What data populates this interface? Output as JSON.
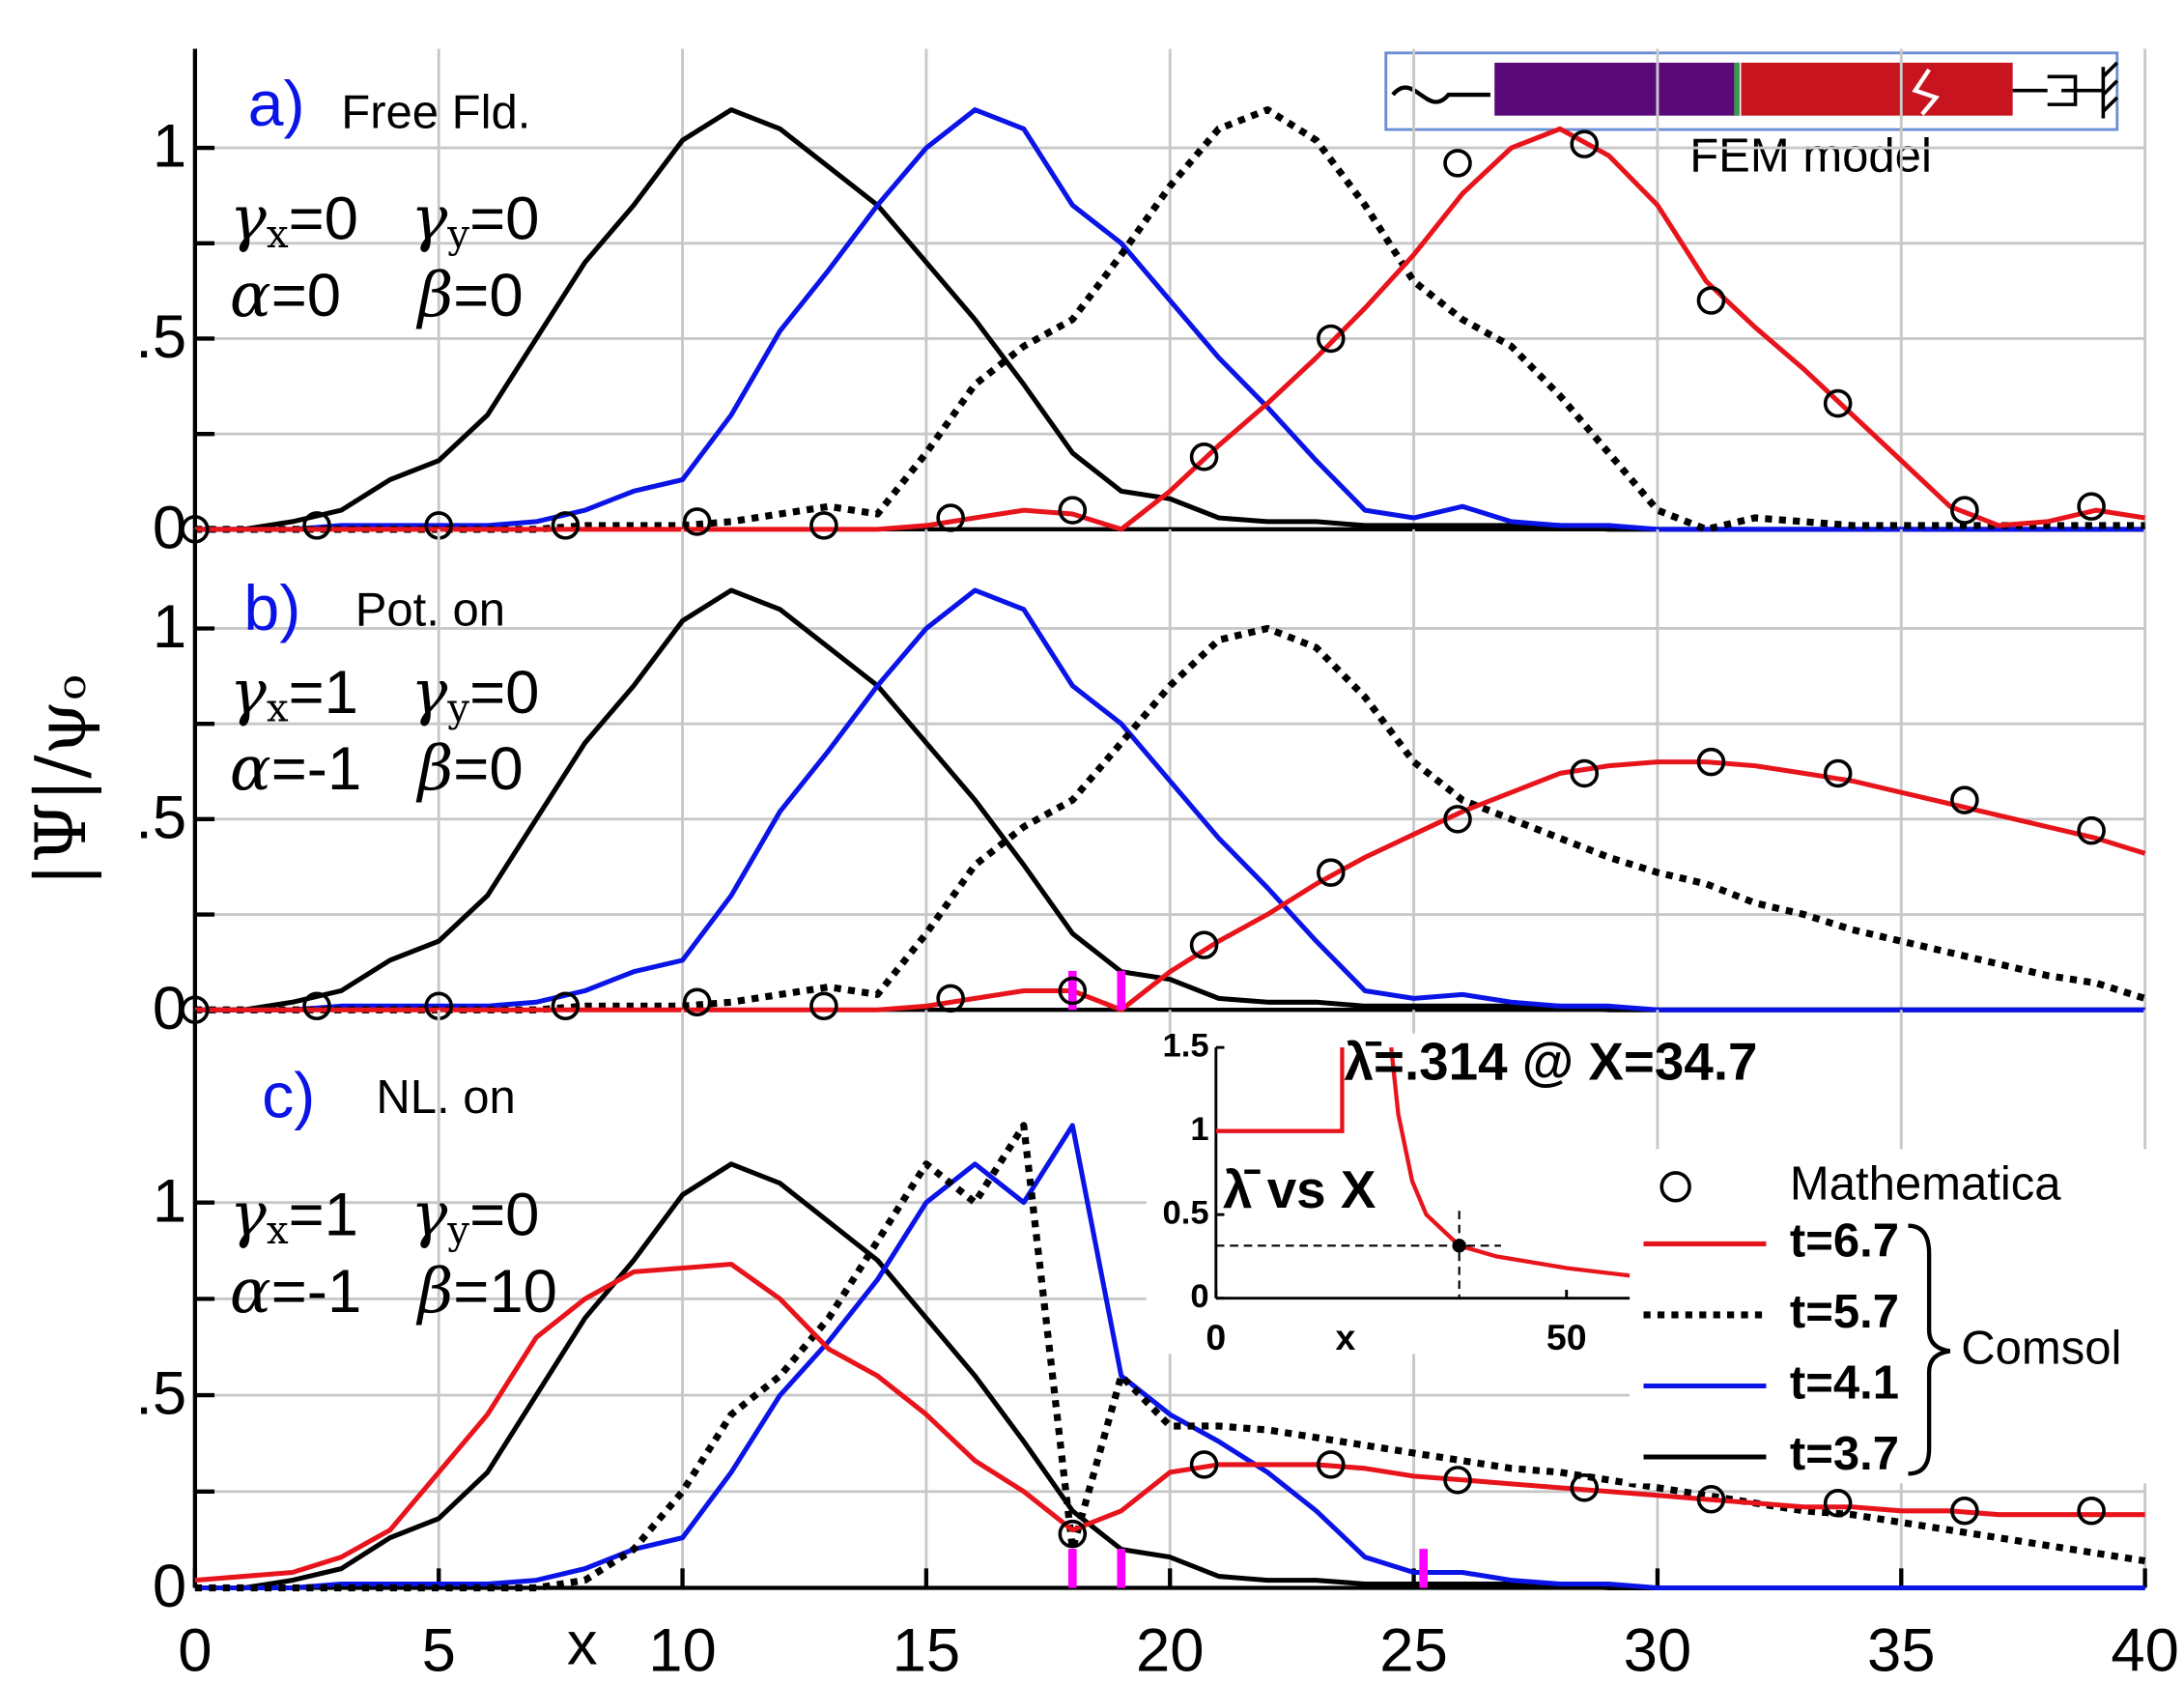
{
  "ylabel": "|Ψ|/ψₒ",
  "fem_label": "FEM model",
  "legend": {
    "entries": [
      "Mathematica",
      "t=6.7",
      "t=5.7",
      "t=4.1",
      "t=3.7"
    ],
    "group_label": "Comsol"
  },
  "chart_data": [
    {
      "type": "line",
      "label": "a)",
      "caption": "Free Fld.",
      "params": [
        {
          "symbol": "γ",
          "sub": "x",
          "text": "=0"
        },
        {
          "symbol": "γ",
          "sub": "y",
          "text": "=0"
        },
        {
          "symbol": "α",
          "sub": "",
          "text": "=0"
        },
        {
          "symbol": "β",
          "sub": "",
          "text": "=0"
        }
      ],
      "x": [
        0,
        1,
        2,
        3,
        4,
        5,
        6,
        7,
        8,
        9,
        10,
        11,
        12,
        13,
        14,
        15,
        16,
        17,
        18,
        19,
        20,
        21,
        22,
        23,
        24,
        25,
        26,
        27,
        28,
        29,
        30,
        31,
        32,
        33,
        34,
        35,
        36,
        37,
        38,
        39,
        40
      ],
      "series": [
        {
          "color": "#e8141c",
          "style": "solid",
          "values": [
            0,
            0,
            0,
            0,
            0,
            0,
            0,
            0,
            0,
            0,
            0,
            0,
            0,
            0,
            0,
            0.01,
            0.03,
            0.05,
            0.04,
            0,
            0.1,
            0.22,
            0.33,
            0.45,
            0.58,
            0.72,
            0.88,
            1.0,
            1.05,
            0.98,
            0.85,
            0.65,
            0.53,
            0.42,
            0.3,
            0.18,
            0.06,
            0.01,
            0.02,
            0.05,
            0.03
          ]
        },
        {
          "color": "#000000",
          "style": "dotted",
          "values": [
            0,
            0,
            0,
            0,
            0,
            0,
            0,
            0,
            0.01,
            0.01,
            0.01,
            0.02,
            0.04,
            0.06,
            0.04,
            0.2,
            0.38,
            0.48,
            0.55,
            0.72,
            0.9,
            1.05,
            1.1,
            1.02,
            0.85,
            0.65,
            0.55,
            0.48,
            0.35,
            0.2,
            0.05,
            0,
            0.03,
            0.02,
            0.01,
            0.01,
            0.01,
            0.01,
            0.01,
            0.01,
            0.01
          ]
        },
        {
          "color": "#0a14e6",
          "style": "solid",
          "values": [
            0,
            0,
            0,
            0.01,
            0.01,
            0.01,
            0.01,
            0.02,
            0.05,
            0.1,
            0.13,
            0.3,
            0.52,
            0.68,
            0.85,
            1.0,
            1.1,
            1.05,
            0.85,
            0.75,
            0.6,
            0.45,
            0.32,
            0.18,
            0.05,
            0.03,
            0.06,
            0.02,
            0.01,
            0.01,
            0,
            0,
            0,
            0,
            0,
            0,
            0,
            0,
            0,
            0,
            0
          ]
        },
        {
          "color": "#000000",
          "style": "solid",
          "values": [
            0,
            0,
            0.02,
            0.05,
            0.13,
            0.18,
            0.3,
            0.5,
            0.7,
            0.85,
            1.02,
            1.1,
            1.05,
            0.95,
            0.85,
            0.7,
            0.55,
            0.38,
            0.2,
            0.1,
            0.08,
            0.03,
            0.02,
            0.02,
            0.01,
            0.01,
            0.01,
            0.01,
            0.01,
            0,
            0,
            0,
            0,
            0,
            0,
            0,
            0,
            0,
            0,
            0,
            0
          ]
        }
      ],
      "mathematica": {
        "x": [
          0,
          2.5,
          5,
          7.6,
          10.3,
          12.9,
          15.5,
          18,
          20.7,
          23.3,
          25.9,
          28.5,
          31.1,
          33.7,
          36.3,
          38.9
        ],
        "values": [
          0,
          0.01,
          0.01,
          0.01,
          0.02,
          0.01,
          0.03,
          0.05,
          0.19,
          0.5,
          0.96,
          1.01,
          0.6,
          0.33,
          0.05,
          0.06
        ]
      },
      "markers_x": [],
      "xlim": [
        0,
        40
      ],
      "xticks": [
        0,
        5,
        10,
        15,
        20,
        25,
        30,
        35,
        40
      ],
      "ylim": [
        0,
        1.26
      ],
      "yticks": [
        0,
        {
          "value": 0.5,
          "label": ".5"
        },
        1
      ],
      "yminor": [
        0.25,
        0.75
      ],
      "grid": true
    },
    {
      "type": "line",
      "label": "b)",
      "caption": "Pot. on",
      "params": [
        {
          "symbol": "γ",
          "sub": "x",
          "text": "=1"
        },
        {
          "symbol": "γ",
          "sub": "y",
          "text": "=0"
        },
        {
          "symbol": "α",
          "sub": "",
          "text": "=-1"
        },
        {
          "symbol": "β",
          "sub": "",
          "text": "=0"
        }
      ],
      "x": [
        0,
        1,
        2,
        3,
        4,
        5,
        6,
        7,
        8,
        9,
        10,
        11,
        12,
        13,
        14,
        15,
        16,
        17,
        18,
        19,
        20,
        21,
        22,
        23,
        24,
        25,
        26,
        27,
        28,
        29,
        30,
        31,
        32,
        33,
        34,
        35,
        36,
        37,
        38,
        39,
        40
      ],
      "series": [
        {
          "color": "#e8141c",
          "style": "solid",
          "values": [
            0,
            0,
            0,
            0,
            0,
            0,
            0,
            0,
            0,
            0,
            0,
            0,
            0,
            0,
            0,
            0.01,
            0.03,
            0.05,
            0.05,
            0,
            0.1,
            0.18,
            0.25,
            0.33,
            0.4,
            0.46,
            0.52,
            0.57,
            0.62,
            0.64,
            0.65,
            0.65,
            0.64,
            0.62,
            0.6,
            0.57,
            0.54,
            0.51,
            0.48,
            0.45,
            0.41
          ]
        },
        {
          "color": "#000000",
          "style": "dotted",
          "values": [
            0,
            0,
            0,
            0,
            0,
            0,
            0,
            0,
            0.01,
            0.01,
            0.01,
            0.02,
            0.04,
            0.06,
            0.04,
            0.2,
            0.38,
            0.48,
            0.55,
            0.7,
            0.85,
            0.97,
            1.0,
            0.95,
            0.82,
            0.65,
            0.55,
            0.5,
            0.45,
            0.4,
            0.36,
            0.33,
            0.28,
            0.25,
            0.21,
            0.18,
            0.15,
            0.12,
            0.09,
            0.07,
            0.03
          ]
        },
        {
          "color": "#0a14e6",
          "style": "solid",
          "values": [
            0,
            0,
            0,
            0.01,
            0.01,
            0.01,
            0.01,
            0.02,
            0.05,
            0.1,
            0.13,
            0.3,
            0.52,
            0.68,
            0.85,
            1.0,
            1.1,
            1.05,
            0.85,
            0.75,
            0.6,
            0.45,
            0.32,
            0.18,
            0.05,
            0.03,
            0.04,
            0.02,
            0.01,
            0.01,
            0,
            0,
            0,
            0,
            0,
            0,
            0,
            0,
            0,
            0,
            0
          ]
        },
        {
          "color": "#000000",
          "style": "solid",
          "values": [
            0,
            0,
            0.02,
            0.05,
            0.13,
            0.18,
            0.3,
            0.5,
            0.7,
            0.85,
            1.02,
            1.1,
            1.05,
            0.95,
            0.85,
            0.7,
            0.55,
            0.38,
            0.2,
            0.1,
            0.08,
            0.03,
            0.02,
            0.02,
            0.01,
            0.01,
            0.01,
            0.01,
            0.01,
            0,
            0,
            0,
            0,
            0,
            0,
            0,
            0,
            0,
            0,
            0,
            0
          ]
        }
      ],
      "mathematica": {
        "x": [
          0,
          2.5,
          5,
          7.6,
          10.3,
          12.9,
          15.5,
          18,
          20.7,
          23.3,
          25.9,
          28.5,
          31.1,
          33.7,
          36.3,
          38.9
        ],
        "values": [
          0,
          0.01,
          0.01,
          0.01,
          0.02,
          0.01,
          0.03,
          0.05,
          0.17,
          0.36,
          0.5,
          0.62,
          0.65,
          0.62,
          0.55,
          0.47
        ]
      },
      "markers_x": [
        18,
        19
      ],
      "xlim": [
        0,
        40
      ],
      "xticks": [
        0,
        5,
        10,
        15,
        20,
        25,
        30,
        35,
        40
      ],
      "ylim": [
        0,
        1.26
      ],
      "yticks": [
        0,
        {
          "value": 0.5,
          "label": ".5"
        },
        1
      ],
      "yminor": [
        0.25,
        0.75
      ],
      "grid": true
    },
    {
      "type": "line",
      "label": "c)",
      "caption": "NL. on",
      "xlabel": "x",
      "params": [
        {
          "symbol": "γ",
          "sub": "x",
          "text": "=1"
        },
        {
          "symbol": "γ",
          "sub": "y",
          "text": "=0"
        },
        {
          "symbol": "α",
          "sub": "",
          "text": "=-1"
        },
        {
          "symbol": "β",
          "sub": "",
          "text": "=10"
        }
      ],
      "x": [
        0,
        1,
        2,
        3,
        4,
        5,
        6,
        7,
        8,
        9,
        10,
        11,
        12,
        13,
        14,
        15,
        16,
        17,
        18,
        19,
        20,
        21,
        22,
        23,
        24,
        25,
        26,
        27,
        28,
        29,
        30,
        31,
        32,
        33,
        34,
        35,
        36,
        37,
        38,
        39,
        40
      ],
      "series": [
        {
          "color": "#e8141c",
          "style": "solid",
          "values": [
            0.02,
            0.03,
            0.04,
            0.08,
            0.15,
            0.3,
            0.45,
            0.65,
            0.75,
            0.82,
            0.83,
            0.84,
            0.75,
            0.62,
            0.55,
            0.45,
            0.33,
            0.25,
            0.15,
            0.2,
            0.3,
            0.32,
            0.32,
            0.32,
            0.31,
            0.29,
            0.28,
            0.27,
            0.26,
            0.25,
            0.24,
            0.23,
            0.22,
            0.21,
            0.21,
            0.2,
            0.2,
            0.19,
            0.19,
            0.19,
            0.19
          ]
        },
        {
          "color": "#000000",
          "style": "dotted",
          "values": [
            0,
            0,
            0,
            0,
            0,
            0,
            0,
            0,
            0.02,
            0.1,
            0.25,
            0.45,
            0.55,
            0.7,
            0.9,
            1.1,
            1.0,
            1.2,
            0.1,
            0.55,
            0.42,
            0.42,
            0.41,
            0.39,
            0.37,
            0.35,
            0.33,
            0.31,
            0.3,
            0.28,
            0.26,
            0.24,
            0.22,
            0.2,
            0.19,
            0.17,
            0.15,
            0.13,
            0.11,
            0.09,
            0.07
          ]
        },
        {
          "color": "#0a14e6",
          "style": "solid",
          "values": [
            0,
            0,
            0,
            0.01,
            0.01,
            0.01,
            0.01,
            0.02,
            0.05,
            0.1,
            0.13,
            0.3,
            0.5,
            0.64,
            0.8,
            1.0,
            1.1,
            1.0,
            1.2,
            0.55,
            0.45,
            0.38,
            0.3,
            0.2,
            0.08,
            0.04,
            0.04,
            0.02,
            0.01,
            0.01,
            0,
            0,
            0,
            0,
            0,
            0,
            0,
            0,
            0,
            0,
            0
          ]
        },
        {
          "color": "#000000",
          "style": "solid",
          "values": [
            0,
            0,
            0.02,
            0.05,
            0.13,
            0.18,
            0.3,
            0.5,
            0.7,
            0.85,
            1.02,
            1.1,
            1.05,
            0.95,
            0.85,
            0.7,
            0.55,
            0.38,
            0.2,
            0.1,
            0.08,
            0.03,
            0.02,
            0.02,
            0.01,
            0.01,
            0.01,
            0.01,
            0.01,
            0,
            0,
            0,
            0,
            0,
            0,
            0,
            0,
            0,
            0,
            0,
            0
          ]
        }
      ],
      "mathematica": {
        "x": [
          18,
          20.7,
          23.3,
          25.9,
          28.5,
          31.1,
          33.7,
          36.3,
          38.9
        ],
        "values": [
          0.14,
          0.32,
          0.32,
          0.28,
          0.26,
          0.23,
          0.22,
          0.2,
          0.2
        ]
      },
      "markers_x": [
        18,
        19,
        25.2
      ],
      "xlim": [
        0,
        40
      ],
      "xticks": [
        0,
        5,
        10,
        15,
        20,
        25,
        30,
        35,
        40
      ],
      "ylim": [
        0,
        1.5
      ],
      "yticks": [
        0,
        {
          "value": 0.5,
          "label": ".5"
        },
        1
      ],
      "yminor": [
        0.25,
        0.75
      ],
      "grid": true
    },
    {
      "type": "inset",
      "title": "λ̄ vs X",
      "annotation": "λ̄=.314 @ X=34.7",
      "xlabel": "x",
      "x": [
        0,
        18,
        18,
        22,
        25,
        26,
        28,
        30,
        34.7,
        40,
        50,
        60
      ],
      "values": [
        1,
        1,
        1.5,
        null,
        1.5,
        1.1,
        0.7,
        0.5,
        0.314,
        0.25,
        0.18,
        0.13
      ],
      "color": "#e8141c",
      "highlight": {
        "x": 34.7,
        "y": 0.314
      },
      "xlim": [
        0,
        60
      ],
      "xticks": [
        0,
        50
      ],
      "ylim": [
        0,
        1.5
      ],
      "yticks": [
        0,
        0.5,
        1,
        1.5
      ]
    }
  ]
}
